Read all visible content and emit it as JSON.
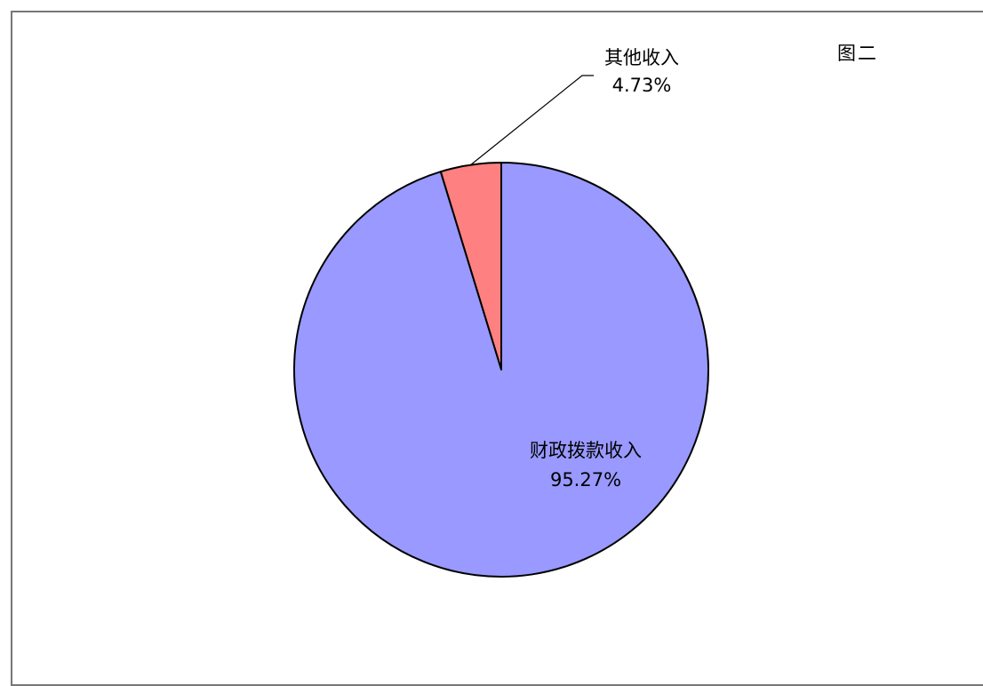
{
  "figure_label": "图二",
  "chart_data": {
    "type": "pie",
    "title": "",
    "slices": [
      {
        "label": "其他收入",
        "value": 4.73,
        "value_text": "4.73%",
        "color": "#FF8080"
      },
      {
        "label": "财政拨款收入",
        "value": 95.27,
        "value_text": "95.27%",
        "color": "#9999FF"
      }
    ],
    "start_angle": "12 o'clock",
    "direction": "counter-clockwise",
    "outline_color": "#000000"
  }
}
